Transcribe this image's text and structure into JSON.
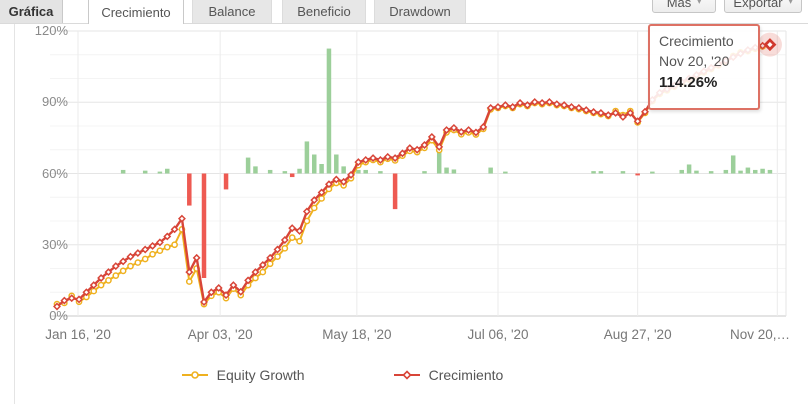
{
  "tabs_bar": {
    "section_label": "Gráfica",
    "tabs": [
      {
        "label": "Crecimiento",
        "active": true
      },
      {
        "label": "Balance",
        "active": false
      },
      {
        "label": "Beneficio",
        "active": false
      },
      {
        "label": "Drawdown",
        "active": false
      }
    ],
    "actions": [
      {
        "label": "Más"
      },
      {
        "label": "Exportar"
      }
    ]
  },
  "tooltip": {
    "series": "Crecimiento",
    "date": "Nov 20, '20",
    "value": "114.26%"
  },
  "legend": [
    {
      "label": "Equity Growth",
      "color": "#efb11f",
      "marker": "circle"
    },
    {
      "label": "Crecimiento",
      "color": "#d84538",
      "marker": "diamond"
    }
  ],
  "chart_data": {
    "type": "line",
    "title": "",
    "ylabel": "",
    "xlabel": "",
    "ylim": [
      0,
      120
    ],
    "y_ticks": [
      {
        "value": 0,
        "label": "0%"
      },
      {
        "value": 30,
        "label": "30%"
      },
      {
        "value": 60,
        "label": "60%"
      },
      {
        "value": 90,
        "label": "90%"
      },
      {
        "value": 120,
        "label": "120%"
      }
    ],
    "x_ticks": [
      {
        "i": 2.86,
        "label": "Jan 16, '20"
      },
      {
        "i": 22.2,
        "label": "Apr 03, '20"
      },
      {
        "i": 40.8,
        "label": "May 18, '20"
      },
      {
        "i": 60.0,
        "label": "Jul 06, '20"
      },
      {
        "i": 79.0,
        "label": "Aug 27, '20"
      },
      {
        "i": 98.0,
        "label": "Nov 20,…"
      }
    ],
    "series": [
      {
        "name": "Equity Growth",
        "color": "#efb11f",
        "marker": "circle",
        "unit": "%",
        "values": [
          5,
          5.5,
          8.5,
          6,
          8,
          10.5,
          13,
          15,
          17,
          19,
          21,
          22.5,
          24,
          26,
          27.5,
          29,
          30,
          36.5,
          14.5,
          20,
          5,
          8.5,
          10,
          7.5,
          11.5,
          8.8,
          13,
          16,
          18.5,
          22,
          25,
          28.5,
          33,
          31.5,
          40,
          45.5,
          49.5,
          53.5,
          56,
          55,
          58,
          63.5,
          64.8,
          65.7,
          64.8,
          66.2,
          65.5,
          67.5,
          69.5,
          69,
          70.8,
          74,
          69.9,
          77.3,
          78.3,
          76.5,
          77.3,
          76.4,
          78.8,
          87,
          87.6,
          88.4,
          87.6,
          89.2,
          88.4,
          89.7,
          89.2,
          89.7,
          88.8,
          88.4,
          87.6,
          87.1,
          86.3,
          85.5,
          85,
          84.2,
          86.3,
          84.6,
          86.3,
          81.5,
          85.5,
          90.5,
          93.5,
          95,
          96.5,
          98,
          99.5,
          101,
          102.5,
          104,
          105.5,
          107,
          109.5,
          111,
          111.5,
          112.5,
          113.5,
          114.1
        ]
      },
      {
        "name": "Crecimiento",
        "color": "#d84538",
        "marker": "diamond",
        "unit": "%",
        "values": [
          4,
          6.5,
          7.5,
          7,
          10,
          13,
          16,
          18.5,
          21,
          23,
          25,
          26.5,
          28,
          29.5,
          31,
          33.5,
          36.5,
          41,
          18.5,
          24.5,
          5.9,
          10,
          11.8,
          8.8,
          13,
          10.2,
          15,
          18.5,
          21.5,
          24.5,
          28,
          32,
          37,
          35.8,
          44,
          48.8,
          52,
          55.5,
          57.5,
          56.5,
          59.4,
          64.8,
          65.7,
          66.5,
          65.7,
          67,
          66.5,
          68.5,
          70.7,
          70,
          72,
          75.4,
          71.2,
          78.3,
          79.2,
          77.5,
          78.3,
          77.3,
          79.6,
          87.6,
          88,
          88.8,
          88,
          89.7,
          88.8,
          90.1,
          89.7,
          90.1,
          89.2,
          88.8,
          88,
          87.6,
          86.7,
          85.9,
          85.5,
          84.6,
          85.5,
          83.8,
          85.5,
          82,
          86,
          91,
          94,
          95.5,
          97,
          98.5,
          100,
          101.5,
          103,
          104.5,
          106,
          107.5,
          109,
          110.5,
          112,
          113,
          113.8,
          114.26
        ]
      }
    ],
    "bars": {
      "description": "weekly profit/loss bars drawn from a baseline at the 60% gridline, heights in main-axis % units",
      "baseline": 60,
      "positive_color": "#9ccf9a",
      "negative_color": "#ee5a52",
      "points": [
        [
          9,
          1.5
        ],
        [
          12,
          1.2
        ],
        [
          14,
          0.8
        ],
        [
          15,
          2
        ],
        [
          18,
          -13.5
        ],
        [
          20,
          -44
        ],
        [
          23,
          -6.7
        ],
        [
          26,
          6.7
        ],
        [
          27,
          3
        ],
        [
          29,
          1.5
        ],
        [
          31,
          1
        ],
        [
          32,
          -1.5
        ],
        [
          33,
          2
        ],
        [
          34,
          13.5
        ],
        [
          35,
          8
        ],
        [
          36,
          4
        ],
        [
          37,
          52.6
        ],
        [
          38,
          8
        ],
        [
          39,
          3
        ],
        [
          41,
          1.5
        ],
        [
          42,
          1.5
        ],
        [
          44,
          1
        ],
        [
          46,
          -15
        ],
        [
          50,
          1
        ],
        [
          52,
          9.3
        ],
        [
          53,
          2.5
        ],
        [
          54,
          1.7
        ],
        [
          59,
          2.5
        ],
        [
          61,
          0.8
        ],
        [
          73,
          1
        ],
        [
          74,
          1
        ],
        [
          77,
          1
        ],
        [
          79,
          -0.8
        ],
        [
          81,
          0.8
        ],
        [
          85,
          1.5
        ],
        [
          86,
          3.8
        ],
        [
          87,
          1.2
        ],
        [
          89,
          1
        ],
        [
          91,
          1.5
        ],
        [
          92,
          7.6
        ],
        [
          93,
          1.2
        ],
        [
          94,
          2.5
        ],
        [
          95,
          1.5
        ],
        [
          96,
          2
        ],
        [
          97,
          1.5
        ]
      ]
    },
    "highlight": {
      "series": "Crecimiento",
      "index": 97,
      "value": 114.26,
      "label": "114.26%",
      "halo_color": "rgba(221,80,66,0.2)"
    },
    "legend_position": "bottom",
    "grid": true
  }
}
